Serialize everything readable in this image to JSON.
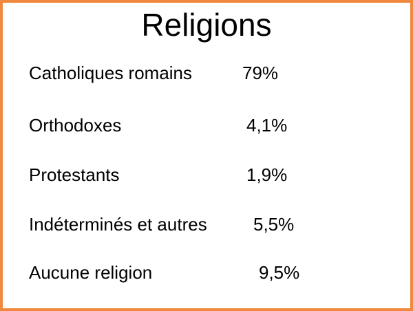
{
  "title": "Religions",
  "items": [
    {
      "label": "Catholiques romains",
      "value": "79%"
    },
    {
      "label": "Orthodoxes",
      "value": "4,1%"
    },
    {
      "label": "Protestants",
      "value": "1,9%"
    },
    {
      "label": "Indéterminés et autres",
      "value": "5,5%"
    },
    {
      "label": "Aucune religion",
      "value": "9,5%"
    }
  ],
  "colors": {
    "border": "#f0883e",
    "background": "#ffffff",
    "text": "#000000"
  }
}
